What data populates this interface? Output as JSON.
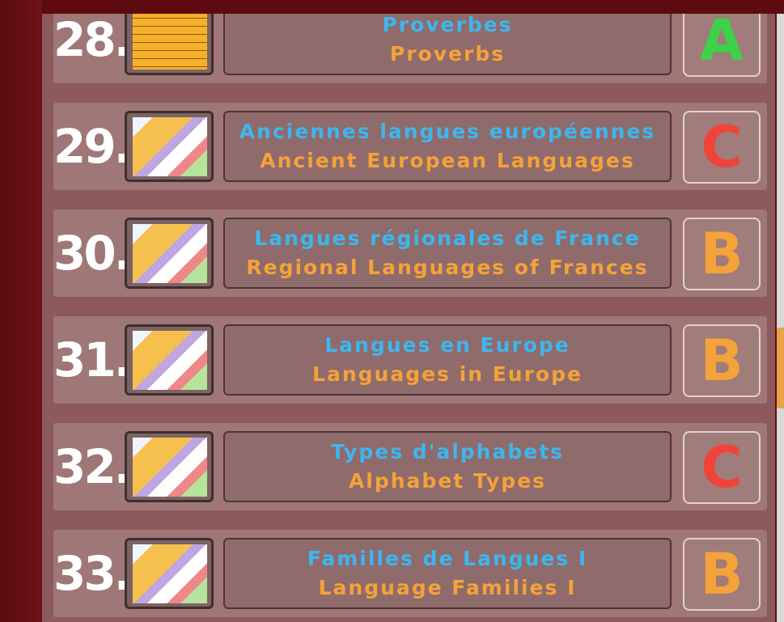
{
  "rows": [
    {
      "number": "28.",
      "icon": "notepad-icon",
      "title_fr": "Proverbes",
      "title_en": "Proverbs",
      "grade": "A",
      "grade_color": "#3ed14a"
    },
    {
      "number": "29.",
      "icon": "europe-map-icon",
      "title_fr": "Anciennes langues européennes",
      "title_en": "Ancient European Languages",
      "grade": "C",
      "grade_color": "#f0443a"
    },
    {
      "number": "30.",
      "icon": "europe-map-icon",
      "title_fr": "Langues régionales de France",
      "title_en": "Regional Languages of Frances",
      "grade": "B",
      "grade_color": "#f4a23a"
    },
    {
      "number": "31.",
      "icon": "europe-map-icon",
      "title_fr": "Langues en Europe",
      "title_en": "Languages in Europe",
      "grade": "B",
      "grade_color": "#f4a23a"
    },
    {
      "number": "32.",
      "icon": "europe-map-icon",
      "title_fr": "Types d'alphabets",
      "title_en": "Alphabet Types",
      "grade": "C",
      "grade_color": "#f0443a"
    },
    {
      "number": "33.",
      "icon": "europe-map-icon",
      "title_fr": "Familles de Langues I",
      "title_en": "Language Families I",
      "grade": "B",
      "grade_color": "#f4a23a"
    }
  ]
}
